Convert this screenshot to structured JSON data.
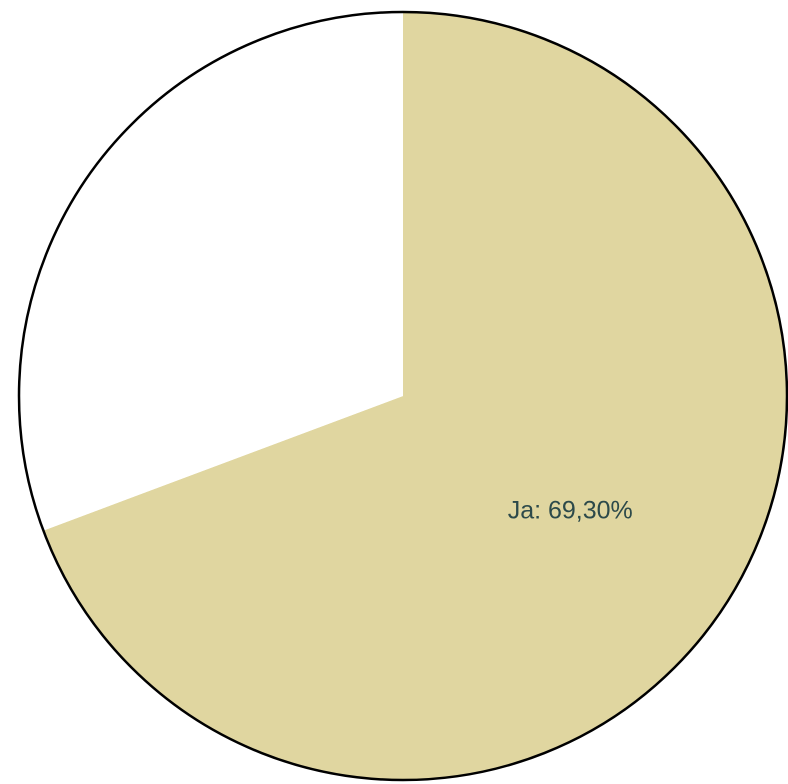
{
  "chart_data": {
    "type": "pie",
    "values": [
      69.3,
      30.7
    ],
    "value_labels": [
      "Ja: 69,30%",
      null
    ],
    "colors": [
      "#e0d6a0",
      "#ffffff"
    ],
    "start_angle": 0,
    "direction": "clockwise"
  }
}
